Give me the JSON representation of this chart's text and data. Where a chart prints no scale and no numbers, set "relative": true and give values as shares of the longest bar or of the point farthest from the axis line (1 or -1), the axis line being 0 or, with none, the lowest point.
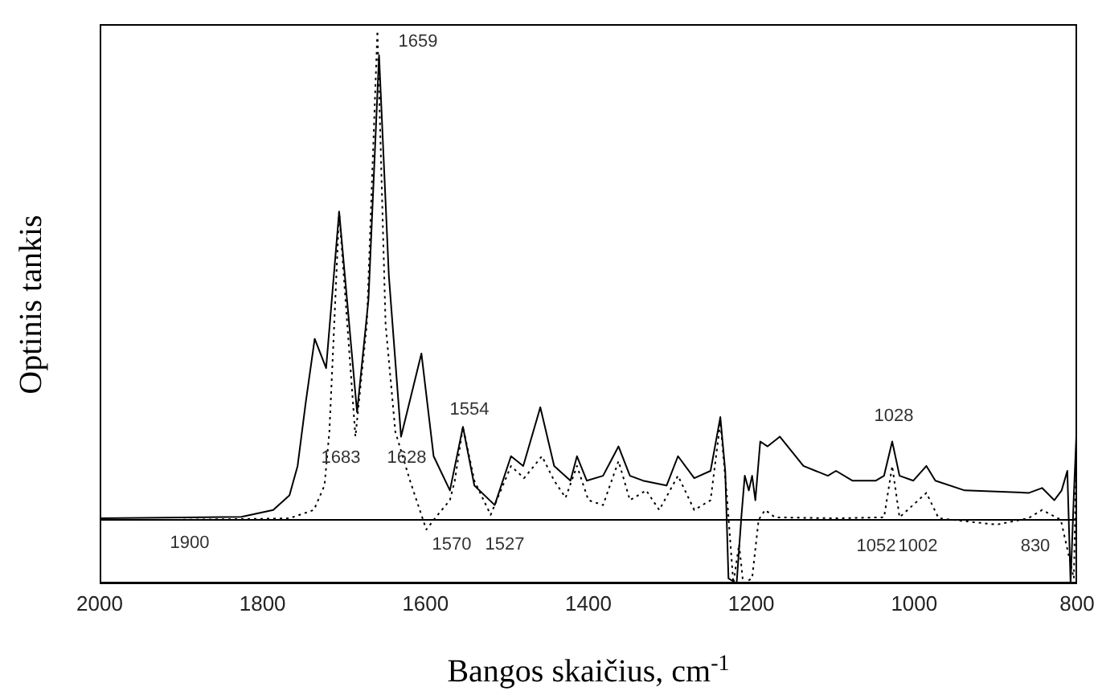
{
  "chart_data": {
    "type": "line",
    "relative": true,
    "xlabel": "Bangos skaičius, cm$^{-1}$",
    "ylabel": "Optinis tankis",
    "xlim": [
      2000,
      800
    ],
    "xticks": [
      2000,
      1800,
      1600,
      1400,
      1200,
      1000,
      800
    ],
    "grid": false,
    "marker": "none",
    "ref_lines": [
      {
        "axis": "y",
        "value": 0,
        "color": "#000000"
      }
    ],
    "series": [
      {
        "color": "#000000",
        "line_style": "solid",
        "x": [
          2000,
          1826,
          1787,
          1767,
          1757,
          1747,
          1736,
          1722,
          1706,
          1684,
          1670,
          1657,
          1645,
          1630,
          1605,
          1590,
          1570,
          1554,
          1540,
          1515,
          1495,
          1480,
          1459,
          1442,
          1422,
          1414,
          1402,
          1382,
          1363,
          1349,
          1333,
          1304,
          1290,
          1270,
          1250,
          1238,
          1232,
          1228,
          1218,
          1212,
          1208,
          1203,
          1199,
          1195,
          1189,
          1180,
          1165,
          1136,
          1106,
          1096,
          1076,
          1047,
          1037,
          1027,
          1018,
          1001,
          985,
          974,
          938,
          859,
          843,
          828,
          819,
          812,
          808,
          804,
          800
        ],
        "values": [
          0.003,
          0.006,
          0.02,
          0.05,
          0.11,
          0.24,
          0.37,
          0.31,
          0.63,
          0.22,
          0.45,
          0.95,
          0.5,
          0.17,
          0.34,
          0.13,
          0.06,
          0.19,
          0.07,
          0.03,
          0.13,
          0.11,
          0.23,
          0.11,
          0.08,
          0.13,
          0.08,
          0.09,
          0.15,
          0.09,
          0.08,
          0.07,
          0.13,
          0.085,
          0.1,
          0.21,
          0.1,
          -0.12,
          -0.13,
          0.01,
          0.09,
          0.06,
          0.09,
          0.04,
          0.16,
          0.15,
          0.17,
          0.11,
          0.09,
          0.1,
          0.08,
          0.08,
          0.09,
          0.16,
          0.09,
          0.08,
          0.11,
          0.08,
          0.06,
          0.055,
          0.065,
          0.04,
          0.06,
          0.1,
          -0.13,
          0.05,
          0.21
        ]
      },
      {
        "color": "#000000",
        "line_style": "dotted",
        "x": [
          2000,
          1900,
          1800,
          1767,
          1737,
          1724,
          1718,
          1712,
          1706,
          1696,
          1686,
          1672,
          1659,
          1649,
          1637,
          1619,
          1599,
          1585,
          1570,
          1564,
          1554,
          1540,
          1520,
          1495,
          1479,
          1457,
          1442,
          1428,
          1414,
          1400,
          1382,
          1363,
          1349,
          1329,
          1313,
          1290,
          1270,
          1250,
          1238,
          1230,
          1222,
          1215,
          1210,
          1199,
          1191,
          1183,
          1171,
          1096,
          1037,
          1027,
          1018,
          985,
          970,
          899,
          860,
          843,
          820,
          804,
          800
        ],
        "values": [
          0,
          0,
          0.002,
          0.003,
          0.02,
          0.07,
          0.18,
          0.4,
          0.63,
          0.4,
          0.17,
          0.4,
          1,
          0.4,
          0.18,
          0.08,
          -0.02,
          0.01,
          0.04,
          0.08,
          0.19,
          0.08,
          0.01,
          0.11,
          0.085,
          0.13,
          0.08,
          0.045,
          0.11,
          0.04,
          0.03,
          0.12,
          0.04,
          0.06,
          0.02,
          0.09,
          0.02,
          0.04,
          0.2,
          0.05,
          -0.13,
          -0.05,
          -0.13,
          -0.12,
          0,
          0.02,
          0.005,
          0.003,
          0.005,
          0.11,
          0.005,
          0.055,
          0.003,
          -0.01,
          0.003,
          0.02,
          0,
          -0.12,
          0.21
        ]
      }
    ],
    "annotations": [
      "1659",
      "1554",
      "1028",
      "1683",
      "1628",
      "1900",
      "1570",
      "1527",
      "1052",
      "1002",
      "830"
    ]
  }
}
